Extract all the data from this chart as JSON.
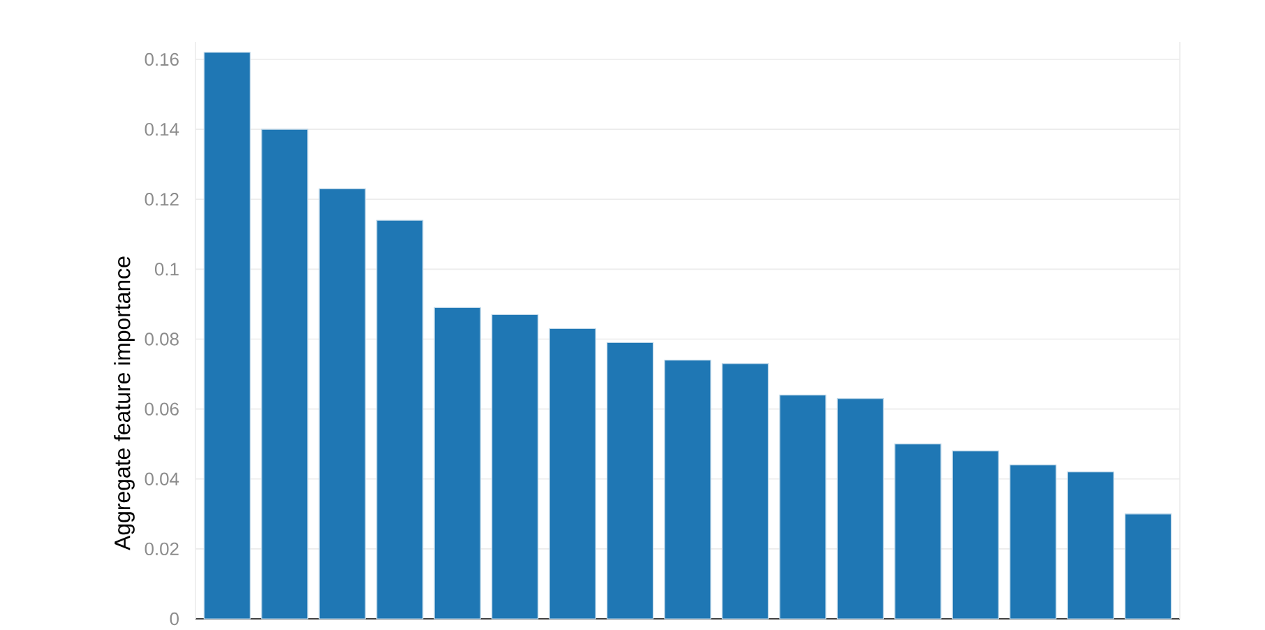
{
  "chart_data": {
    "type": "bar",
    "ylabel": "Aggregate feature importance",
    "categories": [
      null,
      null,
      null,
      null,
      null,
      null,
      null,
      null,
      null,
      null,
      null,
      null,
      null,
      null,
      null,
      null,
      null
    ],
    "values": [
      0.162,
      0.14,
      0.123,
      0.114,
      0.089,
      0.087,
      0.083,
      0.079,
      0.074,
      0.073,
      0.064,
      0.063,
      0.05,
      0.048,
      0.044,
      0.042,
      0.03
    ],
    "color": "#1f77b4",
    "ylim": [
      0,
      0.165
    ],
    "yticks": [
      0,
      0.02,
      0.04,
      0.06,
      0.08,
      0.1,
      0.12,
      0.14,
      0.16
    ],
    "grid": "y",
    "tick_labels": "y"
  }
}
